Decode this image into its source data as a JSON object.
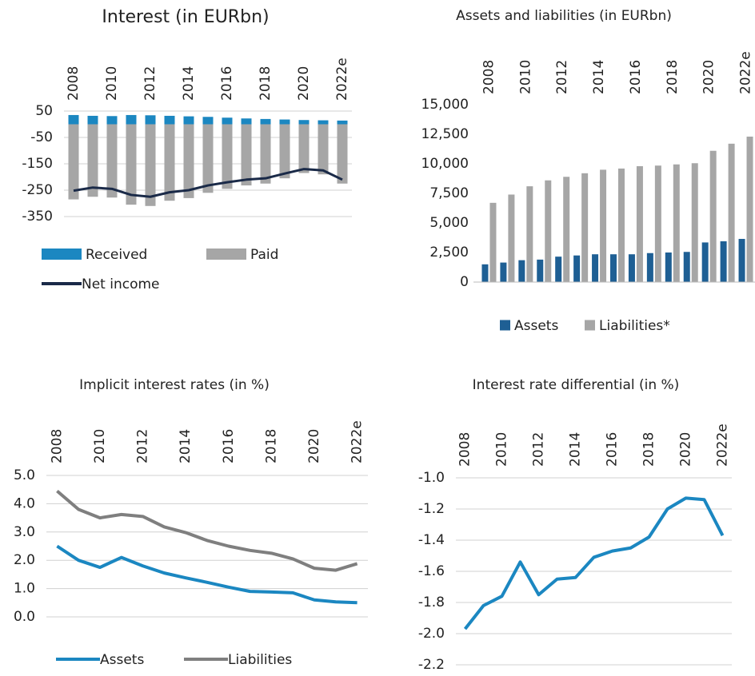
{
  "chart_data": [
    {
      "type": "bar",
      "title": "Interest (in EURbn)",
      "categories": [
        "2008",
        null,
        "2010",
        null,
        "2012",
        null,
        "2014",
        null,
        "2016",
        null,
        "2018",
        null,
        "2020",
        null,
        "2022e"
      ],
      "series": [
        {
          "name": "Received",
          "color": "#1b87c1",
          "values": [
            35,
            32,
            31,
            35,
            34,
            32,
            30,
            28,
            25,
            22,
            20,
            18,
            16,
            15,
            14
          ]
        },
        {
          "name": "Paid",
          "color": "#a6a6a6",
          "values": [
            -285,
            -275,
            -278,
            -305,
            -310,
            -290,
            -280,
            -260,
            -245,
            -232,
            -225,
            -205,
            -185,
            -190,
            -225
          ]
        },
        {
          "name": "Net income",
          "type": "line",
          "color": "#1a2a48",
          "values": [
            -252,
            -240,
            -245,
            -268,
            -275,
            -258,
            -250,
            -232,
            -220,
            -210,
            -205,
            -187,
            -170,
            -175,
            -210
          ]
        }
      ],
      "ylim": [
        -350,
        50
      ],
      "yticks": [
        50,
        -50,
        -150,
        -250,
        -350
      ],
      "grid": true
    },
    {
      "type": "bar",
      "title": "Assets and liabilities (in EURbn)",
      "categories": [
        "2008",
        null,
        "2010",
        null,
        "2012",
        null,
        "2014",
        null,
        "2016",
        null,
        "2018",
        null,
        "2020",
        null,
        "2022e"
      ],
      "series": [
        {
          "name": "Assets",
          "color": "#1e5f94",
          "values": [
            1500,
            1650,
            1850,
            1900,
            2150,
            2250,
            2350,
            2350,
            2350,
            2450,
            2500,
            2550,
            3350,
            3450,
            3650
          ]
        },
        {
          "name": "Liabilities*",
          "color": "#a6a6a6",
          "values": [
            6700,
            7400,
            8100,
            8600,
            8900,
            9200,
            9500,
            9600,
            9800,
            9850,
            9950,
            10050,
            11100,
            11700,
            12300
          ]
        }
      ],
      "ylim": [
        0,
        15000
      ],
      "yticks": [
        0,
        {
          "value": 2500,
          "label": "2,500"
        },
        {
          "value": 5000,
          "label": "5,000"
        },
        {
          "value": 7500,
          "label": "7,500"
        },
        {
          "value": 10000,
          "label": "10,000"
        },
        {
          "value": 12500,
          "label": "12,500"
        },
        {
          "value": 15000,
          "label": "15,000"
        }
      ],
      "grid": false
    },
    {
      "type": "line",
      "title": "Implicit interest rates (in %)",
      "categories": [
        "2008",
        null,
        "2010",
        null,
        "2012",
        null,
        "2014",
        null,
        "2016",
        null,
        "2018",
        null,
        "2020",
        null,
        "2022e"
      ],
      "series": [
        {
          "name": "Assets",
          "color": "#1b87c1",
          "values": [
            2.5,
            2.0,
            1.75,
            2.1,
            1.8,
            1.55,
            1.38,
            1.22,
            1.05,
            0.9,
            0.88,
            0.85,
            0.6,
            0.53,
            0.5
          ]
        },
        {
          "name": "Liabilities",
          "color": "#7f7f7f",
          "values": [
            4.45,
            3.8,
            3.5,
            3.62,
            3.55,
            3.18,
            2.98,
            2.7,
            2.5,
            2.35,
            2.25,
            2.05,
            1.72,
            1.65,
            1.88
          ]
        }
      ],
      "ylim": [
        0,
        5
      ],
      "yticks": [
        {
          "value": 0,
          "label": "0.0"
        },
        {
          "value": 1,
          "label": "1.0"
        },
        {
          "value": 2,
          "label": "2.0"
        },
        {
          "value": 3,
          "label": "3.0"
        },
        {
          "value": 4,
          "label": "4.0"
        },
        {
          "value": 5,
          "label": "5.0"
        }
      ],
      "grid": true
    },
    {
      "type": "line",
      "title": "Interest rate differential (in %)",
      "categories": [
        "2008",
        null,
        "2010",
        null,
        "2012",
        null,
        "2014",
        null,
        "2016",
        null,
        "2018",
        null,
        "2020",
        null,
        "2022e"
      ],
      "series": [
        {
          "color": "#1b87c1",
          "values": [
            -1.97,
            -1.82,
            -1.76,
            -1.54,
            -1.75,
            -1.65,
            -1.64,
            -1.51,
            -1.47,
            -1.45,
            -1.38,
            -1.2,
            -1.13,
            -1.14,
            -1.37
          ]
        }
      ],
      "ylim": [
        -2.2,
        -1.0
      ],
      "yticks": [
        {
          "value": -1.0,
          "label": "-1.0"
        },
        -1.2,
        -1.4,
        -1.6,
        -1.8,
        {
          "value": -2.0,
          "label": "-2.0"
        },
        -2.2
      ],
      "grid": true
    }
  ]
}
